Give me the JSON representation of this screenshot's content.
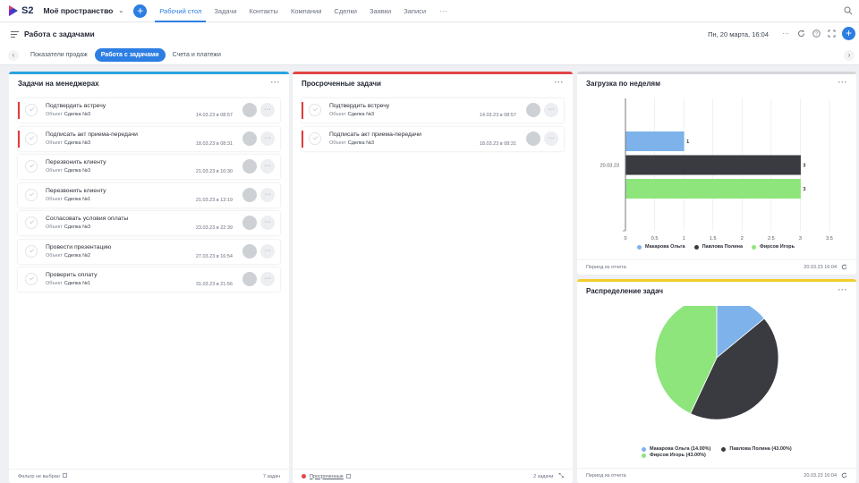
{
  "app": {
    "logo_text": "S2",
    "workspace": "Моё пространство",
    "nav": [
      "Рабочий стол",
      "Задачи",
      "Контакты",
      "Компании",
      "Сделки",
      "Заявки",
      "Записи"
    ],
    "nav_more": "···"
  },
  "page": {
    "title": "Работа с задачами",
    "datetime": "Пн, 20 марта, 16:04"
  },
  "tabs": [
    "Показатели продаж",
    "Работа с задачами",
    "Счета и платежи"
  ],
  "colors": {
    "accent": "#2d7ee3",
    "blue_bar": "#29a3e0",
    "red_bar": "#e04545",
    "gray_bar": "#d4d6da",
    "yellow_bar": "#f2cc2b",
    "series_blue": "#7db3ea",
    "series_dark": "#3a3b40",
    "series_green": "#8ee57c"
  },
  "panel_managers": {
    "title": "Задачи на менеджерах",
    "object_label": "Объект",
    "tasks": [
      {
        "name": "Подтвердить встречу",
        "object": "Сделка №3",
        "date": "14.03.23 в 08:57",
        "overdue": true
      },
      {
        "name": "Подписать акт приема-передачи",
        "object": "Сделка №3",
        "date": "18.03.23 в 08:31",
        "overdue": true
      },
      {
        "name": "Перезвонить клиенту",
        "object": "Сделка №3",
        "date": "21.03.23 в 10:30",
        "overdue": false
      },
      {
        "name": "Перезвонить клиенту",
        "object": "Сделка №1",
        "date": "21.03.23 в 13:19",
        "overdue": false
      },
      {
        "name": "Согласовать условия оплаты",
        "object": "Сделка №3",
        "date": "23.03.23 в 22:39",
        "overdue": false
      },
      {
        "name": "Провести презентацию",
        "object": "Сделка №2",
        "date": "27.03.23 в 16:54",
        "overdue": false
      },
      {
        "name": "Проверить оплату",
        "object": "Сделка №1",
        "date": "31.03.23 в 21:56",
        "overdue": false
      }
    ],
    "footer_left": "Фильтр не выбран",
    "footer_right": "7 задач"
  },
  "panel_overdue": {
    "title": "Просроченные задачи",
    "object_label": "Объект",
    "tasks": [
      {
        "name": "Подтвердить встречу",
        "object": "Сделка №3",
        "date": "14.03.23 в 08:57",
        "overdue": true
      },
      {
        "name": "Подписать акт приема-передачи",
        "object": "Сделка №3",
        "date": "18.03.23 в 08:31",
        "overdue": true
      }
    ],
    "footer_left": "Просроченные",
    "footer_right": "2 задачи"
  },
  "panel_weekly": {
    "title": "Загрузка по неделям",
    "footer_left": "Период из отчета",
    "footer_right": "20.03.23 16:04"
  },
  "panel_distribution": {
    "title": "Распределение задач",
    "footer_left": "Период из отчета",
    "footer_right": "20.03.23 16:04"
  },
  "chart_data": [
    {
      "type": "bar",
      "orientation": "horizontal",
      "categories": [
        "20.03.23"
      ],
      "series": [
        {
          "name": "Макарова Ольга",
          "values": [
            1
          ],
          "color": "#7db3ea"
        },
        {
          "name": "Павлова Полина",
          "values": [
            3
          ],
          "color": "#3a3b40"
        },
        {
          "name": "Фирсов Игорь",
          "values": [
            3
          ],
          "color": "#8ee57c"
        }
      ],
      "xlim": [
        0,
        3.5
      ],
      "xticks": [
        "0",
        "0.5",
        "1",
        "1.5",
        "2",
        "2.5",
        "3",
        "3.5"
      ],
      "legend": "bottom",
      "grid": true
    },
    {
      "type": "pie",
      "labels": [
        "Макарова Ольга (14.00%)",
        "Павлова Полина (43.00%)",
        "Фирсов Игорь (43.00%)"
      ],
      "names": [
        "Макарова Ольга",
        "Павлова Полина",
        "Фирсов Игорь"
      ],
      "values": [
        14,
        43,
        43
      ],
      "colors": [
        "#7db3ea",
        "#3a3b40",
        "#8ee57c"
      ],
      "legend": "bottom"
    }
  ]
}
